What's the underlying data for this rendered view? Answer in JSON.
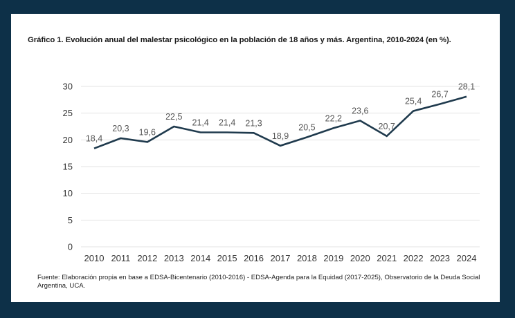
{
  "colors": {
    "background": "#0d3048",
    "panel": "#ffffff",
    "line": "#1f3a4d",
    "gridline": "#e3e3e3"
  },
  "title": "Gráfico 1. Evolución anual del malestar psicológico en la población de 18 años y más. Argentina, 2010-2024 (en %).",
  "source": "Fuente: Elaboración propia en base a EDSA-Bicentenario (2010-2016) - EDSA-Agenda para la Equidad (2017-2025), Observatorio de la Deuda Social Argentina, UCA.",
  "chart_data": {
    "type": "line",
    "title": "Gráfico 1. Evolución anual del malestar psicológico en la población de 18 años y más. Argentina, 2010-2024 (en %).",
    "xlabel": "",
    "ylabel": "",
    "categories": [
      "2010",
      "2011",
      "2012",
      "2013",
      "2014",
      "2015",
      "2016",
      "2017",
      "2018",
      "2019",
      "2020",
      "2021",
      "2022",
      "2023",
      "2024"
    ],
    "series": [
      {
        "name": "Malestar psicológico (%)",
        "values": [
          18.4,
          20.3,
          19.6,
          22.5,
          21.4,
          21.4,
          21.3,
          18.9,
          20.5,
          22.2,
          23.6,
          20.7,
          25.4,
          26.7,
          28.1
        ],
        "labels": [
          "18,4",
          "20,3",
          "19,6",
          "22,5",
          "21,4",
          "21,4",
          "21,3",
          "18,9",
          "20,5",
          "22,2",
          "23,6",
          "20,7",
          "25,4",
          "26,7",
          "28,1"
        ]
      }
    ],
    "ylim": [
      0,
      30
    ],
    "yticks": [
      0,
      5,
      10,
      15,
      20,
      25,
      30
    ],
    "grid": true,
    "legend": "none"
  }
}
